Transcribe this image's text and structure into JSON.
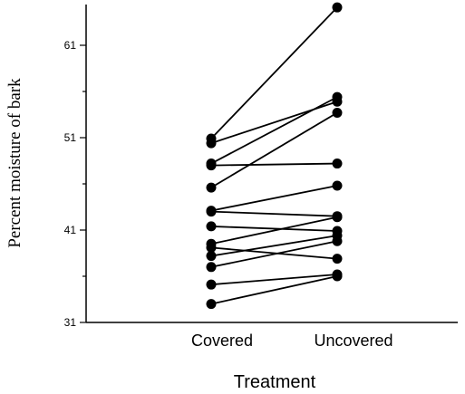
{
  "chart_data": {
    "type": "scatter",
    "subtype": "paired-lines",
    "title": "",
    "xlabel": "Treatment",
    "ylabel": "Percent moisture of bark",
    "categories": [
      "Covered",
      "Uncovered"
    ],
    "ylim": [
      31,
      66
    ],
    "yticks": [
      31,
      41,
      51,
      61
    ],
    "grid": false,
    "legend": "none",
    "pairs": [
      {
        "covered": 50.9,
        "uncovered": 65.1
      },
      {
        "covered": 50.4,
        "uncovered": 54.9
      },
      {
        "covered": 48.2,
        "uncovered": 55.4
      },
      {
        "covered": 48.0,
        "uncovered": 48.2
      },
      {
        "covered": 45.6,
        "uncovered": 53.7
      },
      {
        "covered": 43.1,
        "uncovered": 45.8
      },
      {
        "covered": 43.0,
        "uncovered": 42.5
      },
      {
        "covered": 41.4,
        "uncovered": 40.9
      },
      {
        "covered": 39.5,
        "uncovered": 42.4
      },
      {
        "covered": 39.1,
        "uncovered": 37.9
      },
      {
        "covered": 38.2,
        "uncovered": 40.4
      },
      {
        "covered": 37.0,
        "uncovered": 39.8
      },
      {
        "covered": 35.1,
        "uncovered": 36.2
      },
      {
        "covered": 33.0,
        "uncovered": 36.0
      }
    ]
  }
}
